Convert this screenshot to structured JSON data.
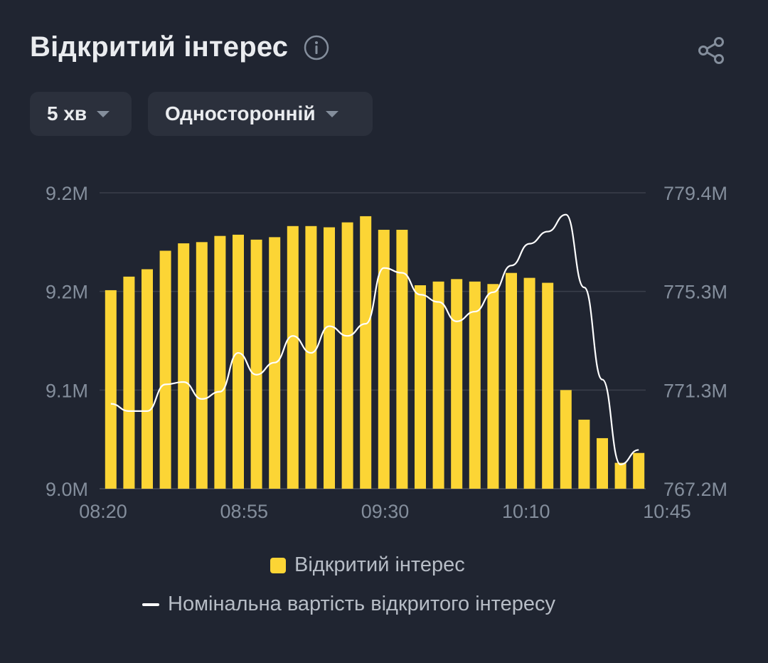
{
  "header": {
    "title": "Відкритий інтерес"
  },
  "filters": {
    "interval": "5 хв",
    "mode": "Односторонній"
  },
  "colors": {
    "bar": "#fcd535",
    "line": "#ffffff",
    "grid": "#3a3f4b",
    "tick": "#848e9c",
    "background": "#202531"
  },
  "chart_data": {
    "type": "bar",
    "title": "Відкритий інтерес",
    "x_ticks": [
      "08:20",
      "08:55",
      "09:30",
      "10:10",
      "10:45"
    ],
    "y_left_ticks": [
      "9.0M",
      "9.1M",
      "9.2M",
      "9.2M"
    ],
    "y_right_ticks": [
      "767.2M",
      "771.3M",
      "775.3M",
      "779.4M"
    ],
    "y_left_range": [
      9.0,
      9.24
    ],
    "y_right_range": [
      767.2,
      779.4
    ],
    "grid": true,
    "legend_position": "bottom",
    "series": [
      {
        "name": "Відкритий інтерес",
        "type": "bar",
        "axis": "left",
        "values": [
          9.161,
          9.172,
          9.178,
          9.193,
          9.199,
          9.2,
          9.205,
          9.206,
          9.202,
          9.204,
          9.213,
          9.213,
          9.212,
          9.216,
          9.221,
          9.21,
          9.21,
          9.165,
          9.168,
          9.17,
          9.168,
          9.166,
          9.175,
          9.171,
          9.167,
          9.08,
          9.056,
          9.041,
          9.021,
          9.029
        ]
      },
      {
        "name": "Номінальна вартість відкритого інтересу",
        "type": "line",
        "axis": "right",
        "values": [
          770.7,
          770.4,
          770.4,
          771.5,
          771.6,
          770.9,
          771.2,
          772.8,
          771.9,
          772.4,
          773.5,
          772.8,
          773.9,
          773.5,
          774.0,
          776.3,
          776.1,
          775.2,
          774.9,
          774.1,
          774.5,
          775.3,
          776.4,
          777.3,
          777.8,
          778.5,
          775.5,
          771.7,
          768.2,
          768.8
        ]
      }
    ]
  }
}
